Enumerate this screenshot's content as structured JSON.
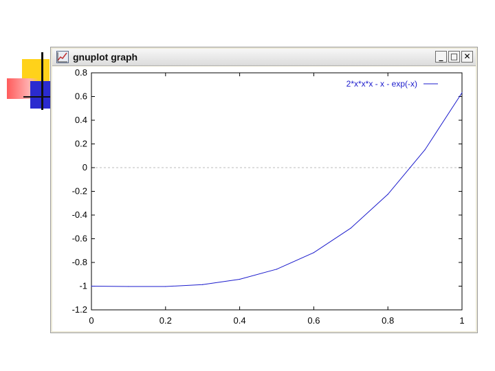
{
  "window": {
    "title": "gnuplot graph",
    "buttons": {
      "minimize": "_",
      "maximize": "□",
      "close": "✕"
    }
  },
  "icons": [
    "chart-app-icon",
    "minimize-icon",
    "maximize-icon",
    "close-icon"
  ],
  "colors": {
    "curve": "#1a1acc",
    "zero_line": "#bbbbbb",
    "accent_yellow": "#ffd21a",
    "accent_red": "#ff5b5b",
    "accent_blue": "#2b2bcf"
  },
  "chart_data": {
    "type": "line",
    "title": "",
    "xlabel": "",
    "ylabel": "",
    "xlim": [
      0,
      1
    ],
    "ylim": [
      -1.2,
      0.8
    ],
    "x_ticks": [
      0,
      0.2,
      0.4,
      0.6,
      0.8,
      1
    ],
    "x_tick_labels": [
      "0",
      "0.2",
      "0.4",
      "0.6",
      "0.8",
      "1"
    ],
    "y_ticks": [
      0.8,
      0.6,
      0.4,
      0.2,
      0,
      -0.2,
      -0.4,
      -0.6,
      -0.8,
      -1,
      -1.2
    ],
    "y_tick_labels": [
      "0.8",
      "0.6",
      "0.4",
      "0.2",
      "0",
      "-0.2",
      "-0.4",
      "-0.6",
      "-0.8",
      "-1",
      "-1.2"
    ],
    "zero_axis": true,
    "grid": false,
    "legend_position": "top-right",
    "series": [
      {
        "name": "2*x*x*x - x - exp(-x)",
        "x": [
          0,
          0.1,
          0.2,
          0.3,
          0.4,
          0.5,
          0.6,
          0.7,
          0.8,
          0.9,
          1.0
        ],
        "y": [
          -1.0,
          -1.003,
          -1.003,
          -0.987,
          -0.942,
          -0.857,
          -0.717,
          -0.51,
          -0.225,
          0.151,
          0.632
        ]
      }
    ]
  }
}
